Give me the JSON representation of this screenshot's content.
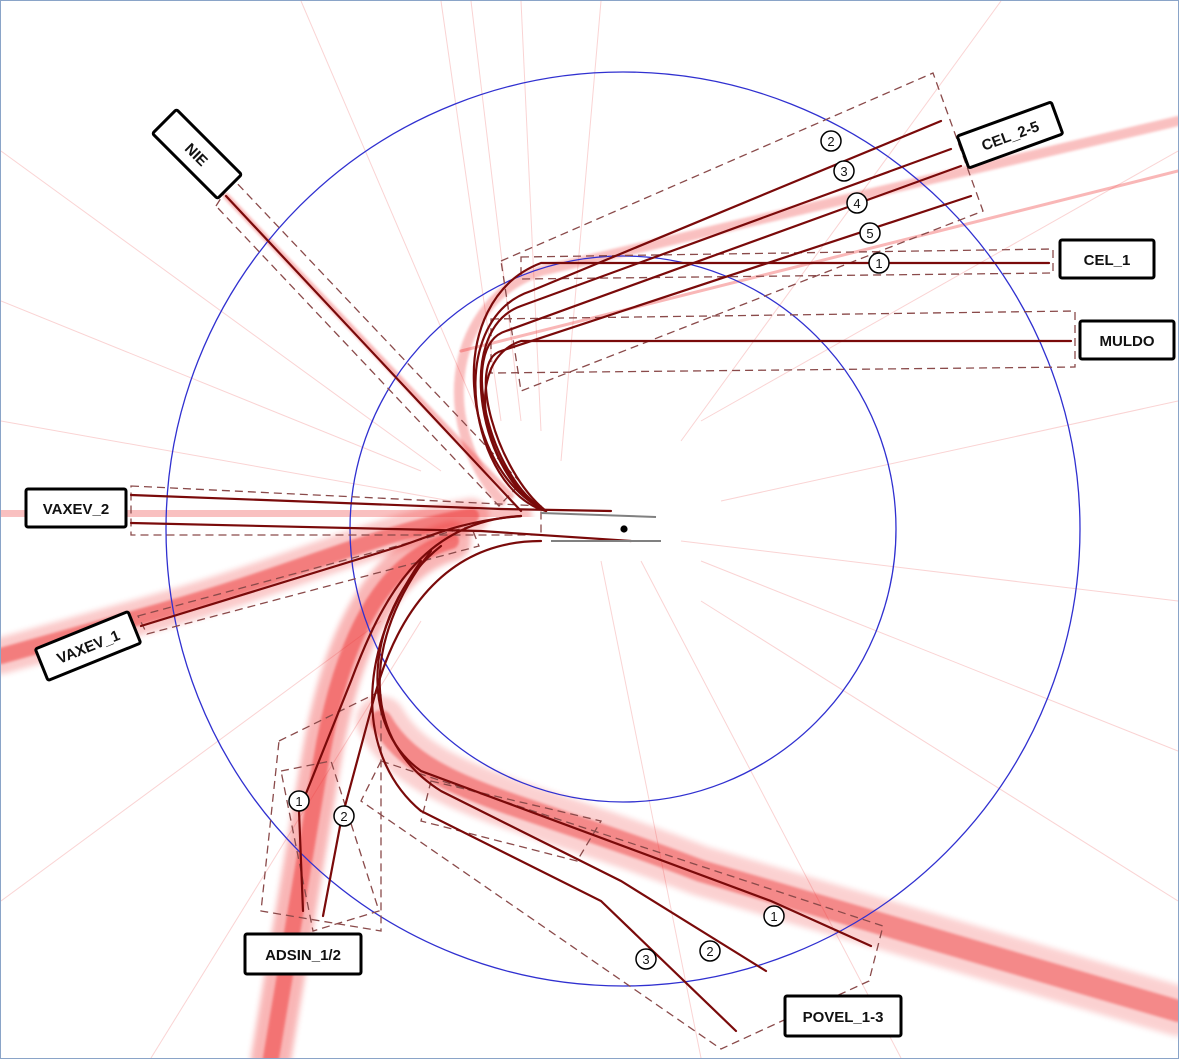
{
  "fixes": [
    {
      "id": "nie",
      "label": "NIE"
    },
    {
      "id": "cel-2-5",
      "label": "CEL_2-5"
    },
    {
      "id": "cel-1",
      "label": "CEL_1"
    },
    {
      "id": "muldo",
      "label": "MULDO"
    },
    {
      "id": "vaxev-2",
      "label": "VAXEV_2"
    },
    {
      "id": "vaxev-1",
      "label": "VAXEV_1"
    },
    {
      "id": "adsin-1-2",
      "label": "ADSIN_1/2"
    },
    {
      "id": "povel-1-3",
      "label": "POVEL_1-3"
    }
  ],
  "route_numbers": {
    "cel": [
      "1",
      "2",
      "3",
      "4",
      "5"
    ],
    "adsin": [
      "1",
      "2"
    ],
    "povel": [
      "1",
      "2",
      "3"
    ]
  },
  "colors": {
    "trajectory_light": "#f4a0a0",
    "trajectory_dense": "#ee3030",
    "route_line": "#7a0a0a",
    "corridor_dash": "#8a4a4a",
    "range_ring": "#3030d0",
    "runway": "#808080",
    "airport_point": "#000000"
  },
  "map_features": {
    "range_rings": 2,
    "airport_point": true
  }
}
